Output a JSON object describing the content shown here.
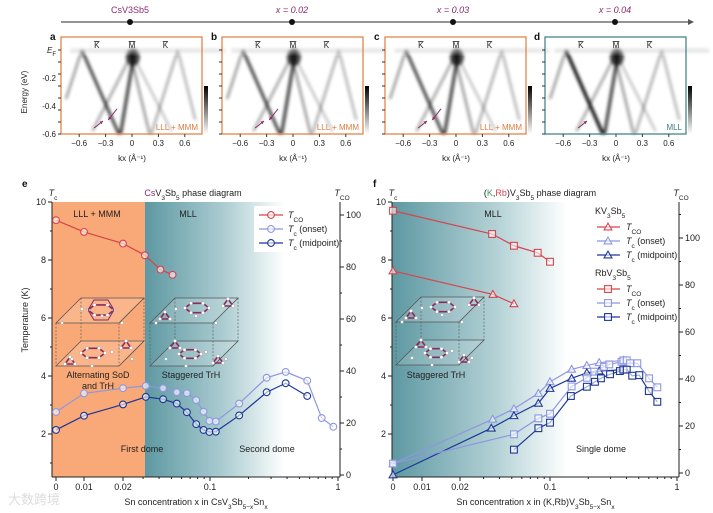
{
  "timeline": {
    "labels": [
      "CsV3Sb5",
      "x = 0.02",
      "x = 0.03",
      "x = 0.04"
    ],
    "label_color": "#8b2b6e"
  },
  "arpes": {
    "ylabel": "Energy (eV)",
    "y_ticks": [
      "EF",
      "-0.2",
      "-0.4",
      "-0.6"
    ],
    "x_ticks": [
      "-0.6",
      "-0.3",
      "0",
      "0.3",
      "0.6"
    ],
    "xlabel": "kx (Å⁻¹)",
    "hs_points": [
      "K̄",
      "M̄",
      "K̄"
    ],
    "panels": [
      {
        "letter": "a",
        "phase": "LLL + MMM",
        "frame_color": "#e07b3c"
      },
      {
        "letter": "b",
        "phase": "LLL + MMM",
        "frame_color": "#e07b3c"
      },
      {
        "letter": "c",
        "phase": "LLL + MMM",
        "frame_color": "#e07b3c"
      },
      {
        "letter": "d",
        "phase": "MLL",
        "frame_color": "#3b7a86"
      }
    ]
  },
  "colors": {
    "tco": "#d6454c",
    "onset": "#8d97e0",
    "midpoint": "#1d3796",
    "orange": "#f9a877",
    "teal": "#5e98a2",
    "purple": "#8b2b6e",
    "green": "#3a9a5a"
  },
  "panel_e": {
    "letter": "e",
    "title_prefix": "Cs",
    "title_rest": "V3Sb5 phase diagram",
    "left_axis_label": "Tc",
    "right_axis_label": "TCO",
    "ylabel": "Temperature (K)",
    "xlabel": "Sn concentration x in CsV3Sb5−xSnx",
    "regions": [
      "LLL + MMM",
      "MLL"
    ],
    "structure_labels": [
      "Alternating SoD",
      "and TrH",
      "Staggered TrH"
    ],
    "dome_labels": [
      "First dome",
      "Second dome"
    ],
    "legend": [
      "TCO",
      "Tc (onset)",
      "Tc (midpoint)"
    ]
  },
  "panel_f": {
    "letter": "f",
    "title_k": "K",
    "title_rb": "Rb",
    "title_rest": "V3Sb5 phase diagram",
    "left_axis_label": "Tc",
    "right_axis_label": "TCO",
    "xlabel": "Sn concentration x in (K,Rb)V3Sb5−xSnx",
    "regions": [
      "MLL"
    ],
    "structure_labels": [
      "Staggered TrH"
    ],
    "dome_labels": [
      "Single dome"
    ],
    "legend_groups": [
      {
        "title": "KV3Sb5",
        "items": [
          "TCO",
          "Tc (onset)",
          "Tc (midpoint)"
        ]
      },
      {
        "title": "RbV3Sb5",
        "items": [
          "TCO",
          "Tc (onset)",
          "Tc (midpoint)"
        ]
      }
    ]
  },
  "watermark": "大数跨境",
  "chart_data": [
    {
      "type": "line",
      "title": "CsV3Sb5 phase diagram",
      "xlabel": "Sn concentration x in CsV3Sb5−xSnx",
      "ylabel": "Temperature (K)",
      "y2label": "TCO",
      "x_ticks": [
        "0",
        "0.01",
        "0.02",
        "0.1",
        "1"
      ],
      "x_tick_values": [
        0,
        0.01,
        0.02,
        0.1,
        1
      ],
      "y_ticks": [
        "2",
        "4",
        "6",
        "8",
        "10"
      ],
      "y2_ticks": [
        "0",
        "20",
        "40",
        "60",
        "80",
        "100"
      ],
      "ylim": [
        0.5,
        10
      ],
      "y2lim": [
        0,
        105
      ],
      "x_scale": "log (linear near 0)",
      "series": [
        {
          "name": "TCO",
          "axis": "right",
          "marker": "circle",
          "x": [
            0,
            0.01,
            0.02,
            0.031,
            0.041,
            0.051
          ],
          "y": [
            98,
            93.5,
            89,
            84.5,
            79,
            77
          ]
        },
        {
          "name": "Tc (onset)",
          "axis": "left",
          "marker": "circle",
          "x": [
            0,
            0.01,
            0.02,
            0.0315,
            0.043,
            0.055,
            0.066,
            0.078,
            0.089,
            0.099,
            0.111,
            0.169,
            0.277,
            0.39,
            0.575,
            0.746,
            0.92
          ],
          "y": [
            2.76,
            3.4,
            3.58,
            3.66,
            3.58,
            3.44,
            3.41,
            3.17,
            2.77,
            2.45,
            2.43,
            3.05,
            3.94,
            4.14,
            3.84,
            2.55,
            2.25
          ]
        },
        {
          "name": "Tc (midpoint)",
          "axis": "left",
          "marker": "circle",
          "x": [
            0,
            0.01,
            0.02,
            0.0315,
            0.043,
            0.055,
            0.066,
            0.078,
            0.089,
            0.099,
            0.111,
            0.169,
            0.277,
            0.39,
            0.575
          ],
          "y": [
            2.14,
            2.63,
            3.02,
            3.28,
            3.2,
            3.05,
            2.75,
            2.34,
            2.14,
            2.07,
            2.08,
            2.64,
            3.44,
            3.75,
            3.31
          ]
        }
      ]
    },
    {
      "type": "line",
      "title": "(K,Rb)V3Sb5 phase diagram",
      "xlabel": "Sn concentration x in (K,Rb)V3Sb5−xSnx",
      "ylabel": "Temperature (K)",
      "y2label": "TCO",
      "x_ticks": [
        "0",
        "0.01",
        "0.02",
        "0.1",
        "1"
      ],
      "x_tick_values": [
        0,
        0.01,
        0.02,
        0.1,
        1
      ],
      "y_ticks": [
        "2",
        "4",
        "6",
        "8",
        "10"
      ],
      "y2_ticks": [
        "0",
        "20",
        "40",
        "60",
        "80",
        "100"
      ],
      "ylim": [
        0.5,
        10
      ],
      "y2lim": [
        0,
        115
      ],
      "series": [
        {
          "name": "KV3Sb5 TCO",
          "axis": "right",
          "marker": "triangle",
          "x": [
            0,
            0.0355,
            0.052
          ],
          "y": [
            86,
            76,
            72
          ]
        },
        {
          "name": "KV3Sb5 Tc (onset)",
          "axis": "left",
          "marker": "triangle",
          "x": [
            0,
            0.0354,
            0.052,
            0.081,
            0.1,
            0.148,
            0.195,
            0.244,
            0.38
          ],
          "y": [
            0.98,
            2.51,
            2.87,
            3.4,
            3.8,
            4.23,
            4.36,
            4.46,
            4.54
          ]
        },
        {
          "name": "KV3Sb5 Tc (midpoint)",
          "axis": "left",
          "marker": "triangle",
          "x": [
            0,
            0.0345,
            0.052,
            0.081,
            0.1,
            0.148,
            0.195,
            0.244,
            0.39
          ],
          "y": [
            0.59,
            2.2,
            2.63,
            3.06,
            3.57,
            3.92,
            4.11,
            4.17,
            4.22
          ]
        },
        {
          "name": "RbV3Sb5 TCO",
          "axis": "right",
          "marker": "square",
          "x": [
            0,
            0.035,
            0.052,
            0.08,
            0.1
          ],
          "y": [
            111.6,
            101.7,
            96.7,
            93.7,
            89.9
          ]
        },
        {
          "name": "RbV3Sb5 Tc (onset)",
          "axis": "left",
          "marker": "square",
          "x": [
            0,
            0.052,
            0.081,
            0.1,
            0.148,
            0.195,
            0.223,
            0.266,
            0.293,
            0.366,
            0.378,
            0.402,
            0.427,
            0.487,
            0.603,
            0.7
          ],
          "y": [
            0.98,
            1.99,
            2.54,
            2.7,
            3.64,
            3.94,
            4.15,
            4.32,
            4.4,
            4.49,
            4.54,
            4.54,
            4.44,
            4.44,
            3.92,
            3.61
          ]
        },
        {
          "name": "RbV3Sb5 Tc (midpoint)",
          "axis": "left",
          "marker": "square",
          "x": [
            0.052,
            0.081,
            0.1,
            0.146,
            0.195,
            0.226,
            0.252,
            0.297,
            0.355,
            0.378,
            0.402,
            0.444,
            0.505,
            0.6,
            0.7
          ],
          "y": [
            1.46,
            2.2,
            2.39,
            3.31,
            3.63,
            3.8,
            3.92,
            4.06,
            4.17,
            4.22,
            4.22,
            4.01,
            4.03,
            3.48,
            3.11
          ]
        }
      ]
    }
  ]
}
